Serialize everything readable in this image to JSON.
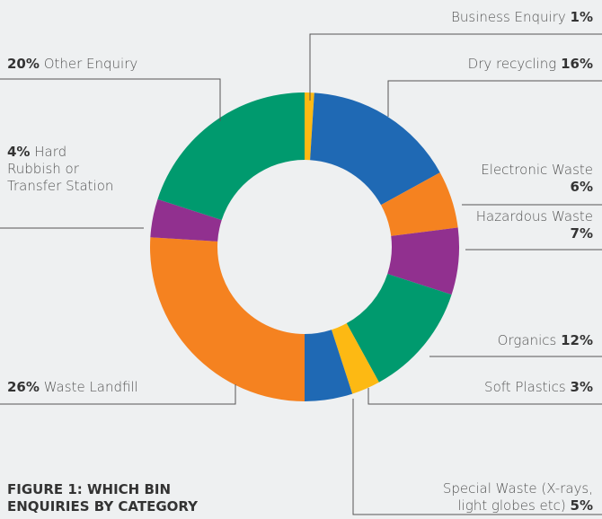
{
  "chart_data": {
    "type": "donut",
    "title": "FIGURE 1: WHICH BIN ENQUIRIES BY CATEGORY",
    "categories": [
      "Business Enquiry",
      "Dry recycling",
      "Electronic Waste",
      "Hazardous Waste",
      "Organics",
      "Soft Plastics",
      "Special Waste (X-rays, light globes etc)",
      "Waste Landfill",
      "Hard Rubbish or Transfer Station",
      "Other Enquiry"
    ],
    "values": [
      1,
      16,
      6,
      7,
      12,
      3,
      5,
      26,
      4,
      20
    ],
    "value_labels": [
      "1%",
      "16%",
      "6%",
      "7%",
      "12%",
      "3%",
      "5%",
      "26%",
      "4%",
      "20%"
    ],
    "colors": [
      "#fdb913",
      "#1f69b4",
      "#f58220",
      "#91308f",
      "#009a6e",
      "#fdb913",
      "#1f69b4",
      "#f58220",
      "#91308f",
      "#009a6e"
    ]
  }
}
